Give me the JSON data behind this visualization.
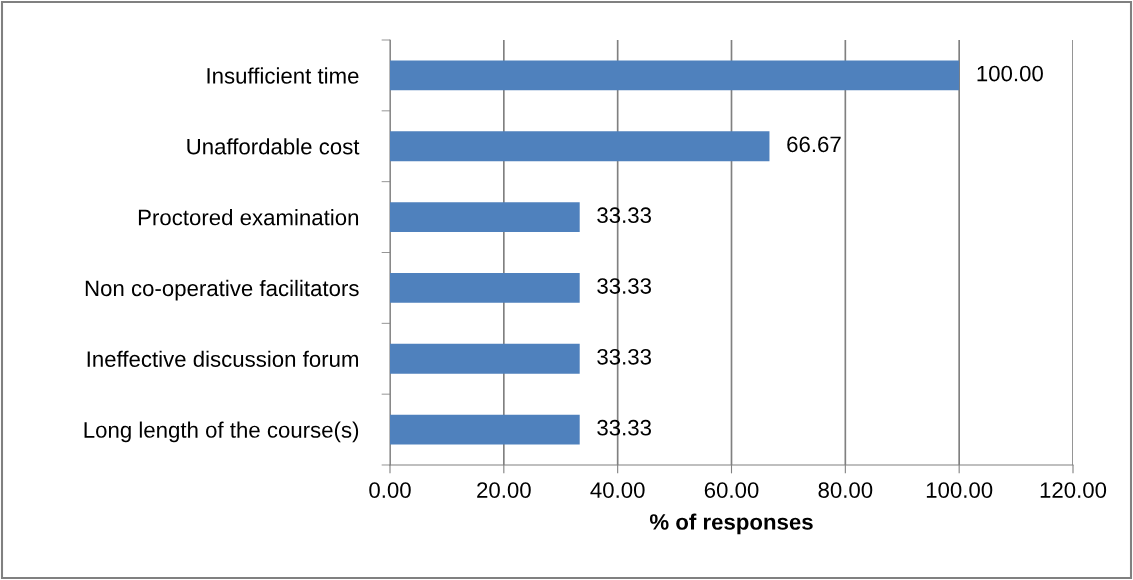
{
  "chart_data": {
    "type": "bar",
    "orientation": "horizontal",
    "xlabel": "% of responses",
    "categories": [
      "Insufficient time",
      "Unaffordable cost",
      "Proctored examination",
      "Non co-operative facilitators",
      "Ineffective discussion forum",
      "Long length of the course(s)"
    ],
    "values": [
      100,
      66.67,
      33.33,
      33.33,
      33.33,
      33.33
    ],
    "value_labels": [
      "100.00",
      "66.67",
      "33.33",
      "33.33",
      "33.33",
      "33.33"
    ],
    "color": "#4f81bd",
    "xlim": [
      0,
      120
    ],
    "xticks": [
      {
        "value": 0,
        "label": "0.00"
      },
      {
        "value": 20,
        "label": "20.00"
      },
      {
        "value": 40,
        "label": "40.00"
      },
      {
        "value": 60,
        "label": "60.00"
      },
      {
        "value": 80,
        "label": "80.00"
      },
      {
        "value": 100,
        "label": "100.00"
      },
      {
        "value": 120,
        "label": "120.00"
      }
    ],
    "grid": "x",
    "legend": false
  }
}
